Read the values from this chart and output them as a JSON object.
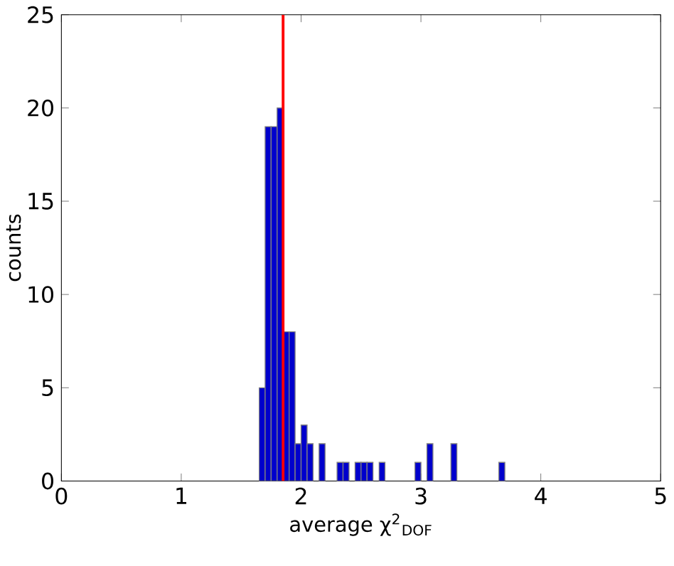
{
  "chart_data": {
    "type": "histogram",
    "xlabel": "average χ$^{2}$$_{DOF}$",
    "ylabel": "counts",
    "bins": [
      1.65,
      1.7,
      1.75,
      1.8,
      1.85,
      1.9,
      1.95,
      2.0,
      2.05,
      2.1,
      2.15,
      2.2,
      2.25,
      2.3,
      2.35,
      2.4,
      2.45,
      2.5,
      2.55,
      2.6,
      2.65,
      2.7,
      2.75,
      2.8,
      2.85,
      2.9,
      2.95,
      3.0,
      3.05,
      3.1,
      3.15,
      3.2,
      3.25,
      3.3,
      3.35,
      3.4,
      3.45,
      3.5,
      3.55,
      3.6,
      3.65,
      3.7
    ],
    "values": [
      5,
      19,
      19,
      20,
      8,
      8,
      2,
      3,
      2,
      0,
      2,
      0,
      0,
      1,
      1,
      0,
      1,
      1,
      1,
      0,
      1,
      0,
      0,
      0,
      0,
      0,
      1,
      0,
      2,
      0,
      0,
      0,
      2,
      0,
      0,
      0,
      0,
      0,
      0,
      0,
      1
    ],
    "color": "#0000cc",
    "xlim": [
      0,
      5
    ],
    "ylim": [
      0,
      25
    ],
    "xticks": [
      0,
      1,
      2,
      3,
      4,
      5
    ],
    "yticks": [
      0,
      5,
      10,
      15,
      20,
      25
    ],
    "ref_lines": [
      {
        "axis": "x",
        "value": 1.85,
        "color": "#ff0000"
      }
    ]
  }
}
